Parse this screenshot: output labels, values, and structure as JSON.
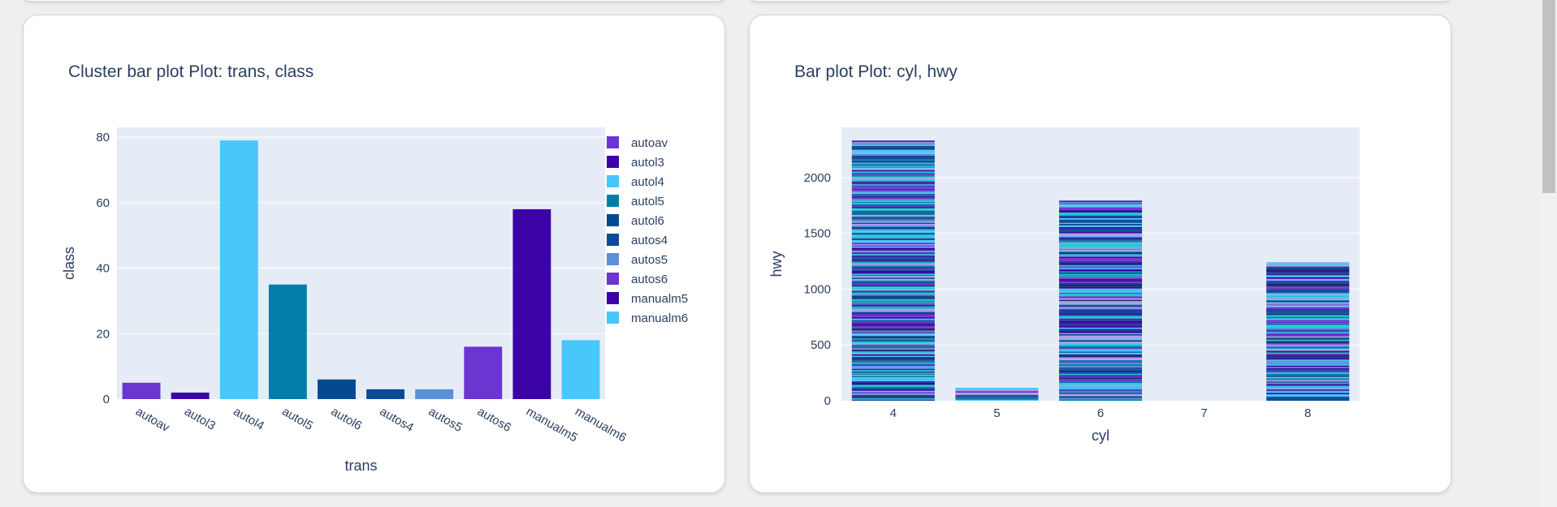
{
  "charts": [
    {
      "title": "Cluster bar plot Plot: trans, class",
      "chart_data": {
        "type": "bar",
        "title": "Cluster bar plot Plot: trans, class",
        "xlabel": "trans",
        "ylabel": "class",
        "ylim": [
          0,
          83
        ],
        "y_ticks": [
          0,
          20,
          40,
          60,
          80
        ],
        "categories": [
          "autoav",
          "autol3",
          "autol4",
          "autol5",
          "autol6",
          "autos4",
          "autos5",
          "autos6",
          "manualm5",
          "manualm6"
        ],
        "values": [
          5,
          2,
          79,
          35,
          6,
          3,
          3,
          16,
          58,
          18
        ],
        "series": [
          {
            "name": "autoav",
            "color": "#6a35d1",
            "values": [
              5,
              null,
              null,
              null,
              null,
              null,
              null,
              null,
              null,
              null
            ]
          },
          {
            "name": "autol3",
            "color": "#3c03a7",
            "values": [
              null,
              2,
              null,
              null,
              null,
              null,
              null,
              null,
              null,
              null
            ]
          },
          {
            "name": "autol4",
            "color": "#47c7fb",
            "values": [
              null,
              null,
              79,
              null,
              null,
              null,
              null,
              null,
              null,
              null
            ]
          },
          {
            "name": "autol5",
            "color": "#007ea7",
            "values": [
              null,
              null,
              null,
              35,
              null,
              null,
              null,
              null,
              null,
              null
            ]
          },
          {
            "name": "autol6",
            "color": "#054a91",
            "values": [
              null,
              null,
              null,
              null,
              6,
              null,
              null,
              null,
              null,
              null
            ]
          },
          {
            "name": "autos4",
            "color": "#0b4a97",
            "values": [
              null,
              null,
              null,
              null,
              null,
              3,
              null,
              null,
              null,
              null
            ]
          },
          {
            "name": "autos5",
            "color": "#5b8fd8",
            "values": [
              null,
              null,
              null,
              null,
              null,
              null,
              3,
              null,
              null,
              null
            ]
          },
          {
            "name": "autos6",
            "color": "#6a35d1",
            "values": [
              null,
              null,
              null,
              null,
              null,
              null,
              null,
              16,
              null,
              null
            ]
          },
          {
            "name": "manualm5",
            "color": "#3c03a7",
            "values": [
              null,
              null,
              null,
              null,
              null,
              null,
              null,
              null,
              58,
              null
            ]
          },
          {
            "name": "manualm6",
            "color": "#47c7fb",
            "values": [
              null,
              null,
              null,
              null,
              null,
              null,
              null,
              null,
              null,
              18
            ]
          }
        ],
        "legend_position": "right",
        "grid": true
      }
    },
    {
      "title": "Bar plot Plot: cyl, hwy",
      "chart_data": {
        "type": "bar",
        "title": "Bar plot Plot: cyl, hwy",
        "xlabel": "cyl",
        "ylabel": "hwy",
        "ylim": [
          0,
          2450
        ],
        "y_ticks": [
          0,
          500,
          1000,
          1500,
          2000
        ],
        "categories": [
          "4",
          "5",
          "6",
          "7",
          "8"
        ],
        "values": [
          2333,
          116,
          1794,
          0,
          1242
        ],
        "stacked": true,
        "stack_colors": [
          "#6a35d1",
          "#3c03a7",
          "#47c7fb",
          "#007ea7",
          "#054a91",
          "#0b4a97",
          "#5b8fd8",
          "#a99de6",
          "#1b2a6b",
          "#1ec8d4"
        ],
        "grid": true,
        "showlegend": false
      }
    }
  ],
  "colors": {
    "plot_bg": "#e5ecf6",
    "grid": "#ffffff",
    "text": "#2a3f5f"
  }
}
